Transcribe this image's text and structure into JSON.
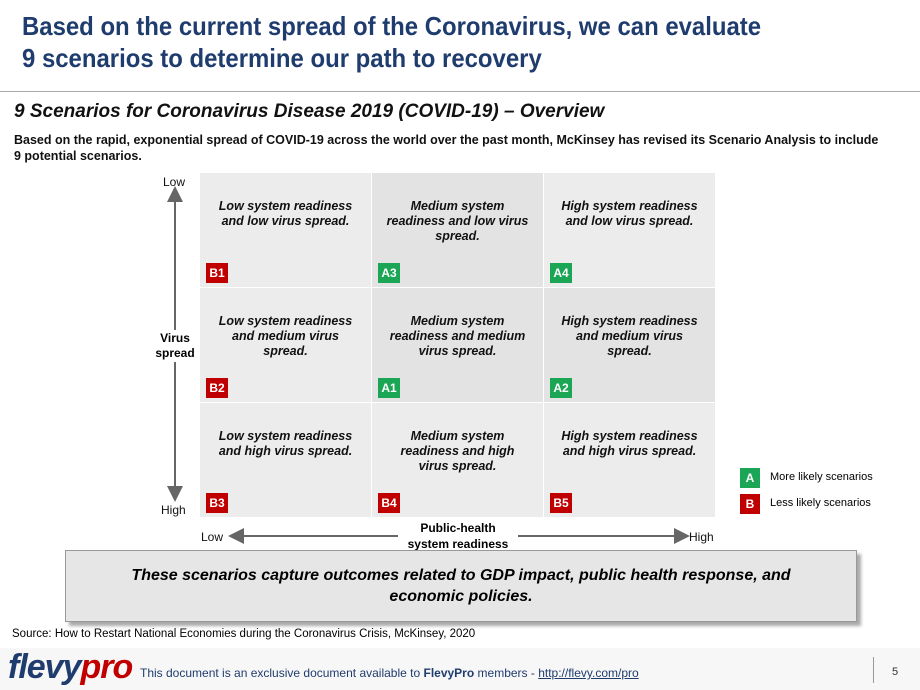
{
  "header": {
    "title_lines": [
      "Based on the current spread of the Coronavirus, we can evaluate",
      "9 scenarios to determine our path to recovery"
    ]
  },
  "subtitle": "9 Scenarios for Coronavirus Disease 2019 (COVID-19) – Overview",
  "description": "Based on the rapid, exponential spread of COVID-19 across the world over the past month, McKinsey has revised its Scenario Analysis to include 9 potential scenarios.",
  "matrix": {
    "rows": [
      [
        {
          "text": "Low system readiness and low virus spread.",
          "code": "B1"
        },
        {
          "text": "Medium system readiness and low virus spread.",
          "code": "A3"
        },
        {
          "text": "High system readiness and low virus spread.",
          "code": "A4"
        }
      ],
      [
        {
          "text": "Low system readiness and medium virus spread.",
          "code": "B2"
        },
        {
          "text": "Medium system readiness and medium virus spread.",
          "code": "A1"
        },
        {
          "text": "High system readiness and medium virus spread.",
          "code": "A2"
        }
      ],
      [
        {
          "text": "Low system readiness and high virus spread.",
          "code": "B3"
        },
        {
          "text": "Medium system readiness and high virus spread.",
          "code": "B4"
        },
        {
          "text": "High system readiness and high virus spread.",
          "code": "B5"
        }
      ]
    ],
    "y_axis": {
      "label": "Virus spread",
      "top": "Low",
      "bottom": "High"
    },
    "x_axis": {
      "label": "Public-health system readiness",
      "left": "Low",
      "right": "High"
    }
  },
  "legend": [
    {
      "code": "A",
      "label": "More likely scenarios"
    },
    {
      "code": "B",
      "label": "Less likely scenarios"
    }
  ],
  "callout": "These scenarios capture outcomes related to GDP impact, public health response, and economic policies.",
  "source": "Source: How to Restart National Economies during the Coronavirus Crisis, McKinsey, 2020",
  "footer": {
    "logo_main": "flevy",
    "logo_accent": "pro",
    "text_before": "This document is an exclusive document available to ",
    "brand": "FlevyPro",
    "text_mid": " members - ",
    "link": "http://flevy.com/pro",
    "page": "5"
  }
}
